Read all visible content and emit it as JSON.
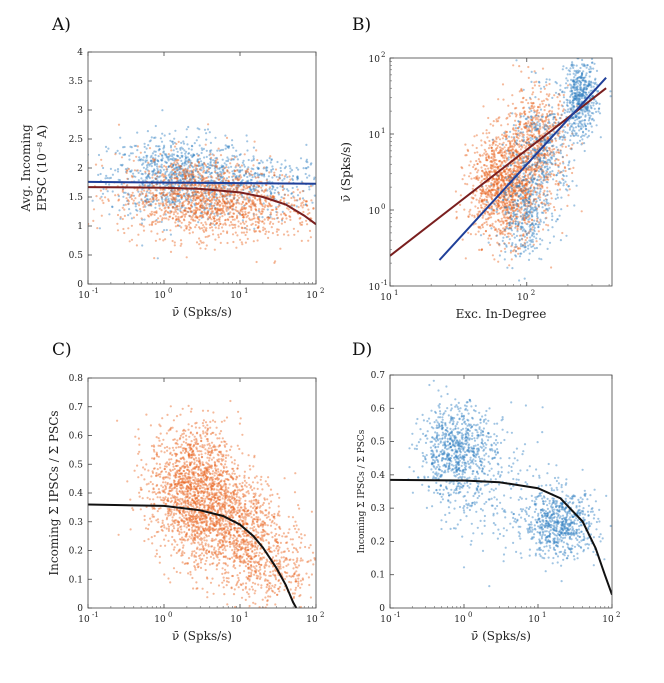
{
  "colors": {
    "orange": "#e8641e",
    "blue": "#2f7fc1",
    "fit_dark_red": "#7a1f1f",
    "fit_dark_blue": "#1f3f99",
    "fit_black": "#111111"
  },
  "chart_data": [
    {
      "id": "A",
      "panel_label": "A)",
      "type": "scatter",
      "xlabel": "ν̄ (Spks/s)",
      "ylabel_line1": "Avg. Incoming",
      "ylabel_line2": "EPSC (10⁻⁸ A)",
      "x_scale": "log",
      "xlim": [
        0.1,
        100
      ],
      "ylim": [
        0,
        4
      ],
      "x_ticks": [
        {
          "v": 0.1,
          "base": "10",
          "exp": "-1"
        },
        {
          "v": 1,
          "base": "10",
          "exp": "0"
        },
        {
          "v": 10,
          "base": "10",
          "exp": "1"
        },
        {
          "v": 100,
          "base": "10",
          "exp": "2"
        }
      ],
      "y_ticks": [
        "0",
        "0.5",
        "1",
        "1.5",
        "2",
        "2.5",
        "3",
        "3.5",
        "4"
      ],
      "series": [
        {
          "name": "blue population",
          "color": "blue",
          "clusters": [
            {
              "cx": 1.5,
              "cy": 1.85,
              "sx": 0.45,
              "sy": 0.35,
              "n": 900
            },
            {
              "cx": 20,
              "cy": 1.75,
              "sx": 0.5,
              "sy": 0.25,
              "n": 350
            }
          ]
        },
        {
          "name": "orange population",
          "color": "orange",
          "clusters": [
            {
              "cx": 2.5,
              "cy": 1.5,
              "sx": 0.5,
              "sy": 0.35,
              "n": 1100
            },
            {
              "cx": 15,
              "cy": 1.3,
              "sx": 0.45,
              "sy": 0.3,
              "n": 400
            }
          ]
        }
      ],
      "fits": [
        {
          "color": "fit_dark_red",
          "x": [
            0.1,
            1,
            3,
            10,
            20,
            40,
            70,
            100
          ],
          "y": [
            1.67,
            1.66,
            1.64,
            1.58,
            1.5,
            1.37,
            1.18,
            1.03
          ]
        },
        {
          "color": "fit_dark_blue",
          "x": [
            0.1,
            100
          ],
          "y": [
            1.76,
            1.73
          ]
        }
      ]
    },
    {
      "id": "B",
      "panel_label": "B)",
      "type": "scatter",
      "xlabel": "Exc. In-Degree",
      "ylabel": "ν̄ (Spks/s)",
      "x_scale": "log",
      "y_scale": "log",
      "xlim": [
        10,
        420
      ],
      "ylim": [
        0.1,
        100
      ],
      "x_ticks": [
        {
          "v": 10,
          "base": "10",
          "exp": "1"
        },
        {
          "v": 100,
          "base": "10",
          "exp": "2"
        }
      ],
      "y_ticks": [
        {
          "v": 0.1,
          "base": "10",
          "exp": "-1"
        },
        {
          "v": 1,
          "base": "10",
          "exp": "0"
        },
        {
          "v": 10,
          "base": "10",
          "exp": "1"
        },
        {
          "v": 100,
          "base": "10",
          "exp": "2"
        }
      ],
      "series": [
        {
          "name": "orange population",
          "color": "orange",
          "clusters": [
            {
              "cx": 70,
              "cy": 2.0,
              "sx": 0.13,
              "sy": 0.35,
              "n": 1300
            },
            {
              "cx": 120,
              "cy": 8,
              "sx": 0.12,
              "sy": 0.35,
              "n": 600
            }
          ]
        },
        {
          "name": "blue population",
          "color": "blue",
          "clusters": [
            {
              "cx": 250,
              "cy": 30,
              "sx": 0.06,
              "sy": 0.25,
              "n": 500
            },
            {
              "cx": 95,
              "cy": 0.9,
              "sx": 0.1,
              "sy": 0.3,
              "n": 350
            },
            {
              "cx": 130,
              "cy": 6,
              "sx": 0.12,
              "sy": 0.4,
              "n": 400
            }
          ]
        }
      ],
      "fits": [
        {
          "color": "fit_dark_red",
          "x": [
            10,
            380
          ],
          "y": [
            0.25,
            40
          ]
        },
        {
          "color": "fit_dark_blue",
          "x": [
            23,
            380
          ],
          "y": [
            0.22,
            55
          ]
        }
      ]
    },
    {
      "id": "C",
      "panel_label": "C)",
      "type": "scatter",
      "xlabel": "ν̄ (Spks/s)",
      "ylabel": "Incoming Σ IPSCs / Σ PSCs",
      "x_scale": "log",
      "xlim": [
        0.1,
        100
      ],
      "ylim": [
        0,
        0.8
      ],
      "x_ticks": [
        {
          "v": 0.1,
          "base": "10",
          "exp": "-1"
        },
        {
          "v": 1,
          "base": "10",
          "exp": "0"
        },
        {
          "v": 10,
          "base": "10",
          "exp": "1"
        },
        {
          "v": 100,
          "base": "10",
          "exp": "2"
        }
      ],
      "y_ticks": [
        "0",
        "0.1",
        "0.2",
        "0.3",
        "0.4",
        "0.5",
        "0.6",
        "0.7",
        "0.8"
      ],
      "series": [
        {
          "name": "orange population",
          "color": "orange",
          "clusters": [
            {
              "cx": 2.5,
              "cy": 0.42,
              "sx": 0.3,
              "sy": 0.11,
              "n": 1500
            },
            {
              "cx": 8,
              "cy": 0.28,
              "sx": 0.35,
              "sy": 0.09,
              "n": 1000
            },
            {
              "cx": 25,
              "cy": 0.12,
              "sx": 0.3,
              "sy": 0.07,
              "n": 350
            }
          ]
        }
      ],
      "fits": [
        {
          "color": "fit_black",
          "x": [
            0.1,
            1,
            3,
            6,
            10,
            15,
            20,
            30,
            40,
            50,
            55
          ],
          "y": [
            0.36,
            0.355,
            0.34,
            0.32,
            0.29,
            0.25,
            0.21,
            0.14,
            0.08,
            0.02,
            0.0
          ]
        }
      ]
    },
    {
      "id": "D",
      "panel_label": "D)",
      "type": "scatter",
      "xlabel": "ν̄ (Spks/s)",
      "ylabel": "Incoming Σ IPSCs / Σ PSCs",
      "x_scale": "log",
      "xlim": [
        0.1,
        100
      ],
      "ylim": [
        0,
        0.7
      ],
      "x_ticks": [
        {
          "v": 0.1,
          "base": "10",
          "exp": "-1"
        },
        {
          "v": 1,
          "base": "10",
          "exp": "0"
        },
        {
          "v": 10,
          "base": "10",
          "exp": "1"
        },
        {
          "v": 100,
          "base": "10",
          "exp": "2"
        }
      ],
      "y_ticks": [
        "0",
        "0.1",
        "0.2",
        "0.3",
        "0.4",
        "0.5",
        "0.6",
        "0.7"
      ],
      "series": [
        {
          "name": "blue population",
          "color": "blue",
          "clusters": [
            {
              "cx": 0.8,
              "cy": 0.47,
              "sx": 0.25,
              "sy": 0.07,
              "n": 800
            },
            {
              "cx": 20,
              "cy": 0.25,
              "sx": 0.25,
              "sy": 0.05,
              "n": 700
            },
            {
              "cx": 3,
              "cy": 0.36,
              "sx": 0.4,
              "sy": 0.1,
              "n": 200
            }
          ]
        }
      ],
      "fits": [
        {
          "color": "fit_black",
          "x": [
            0.1,
            1,
            3,
            10,
            20,
            40,
            60,
            80,
            100
          ],
          "y": [
            0.385,
            0.383,
            0.378,
            0.36,
            0.33,
            0.26,
            0.18,
            0.1,
            0.04
          ]
        }
      ]
    }
  ]
}
